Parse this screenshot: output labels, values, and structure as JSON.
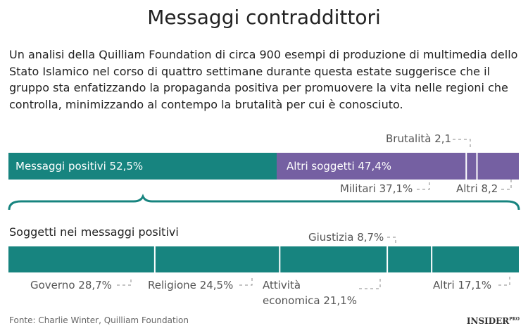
{
  "title": "Messaggi contraddittori",
  "subtitle": "Un analisi della Quilliam Foundation di circa 900 esempi di produzione di multimedia dello Stato Islamico nel corso di quattro settimane durante questa estate suggerisce che il gruppo sta enfatizzando la propaganda positiva per promuovere la vita nelle regioni che controlla, minimizzando al contempo la brutalità per cui è conosciuto.",
  "source": "Fonte: Charlie Winter, Quilliam Foundation",
  "brand": "INSIDER",
  "brand_sup": "PRO",
  "chart_data": [
    {
      "type": "stacked-bar",
      "series": [
        {
          "name": "Messaggi positivi",
          "color": "#17847f",
          "values": [
            52.5
          ],
          "value_labels": [
            "52,5%"
          ]
        },
        {
          "name": "Altri soggetti",
          "color": "#7560a2",
          "values": [
            47.4
          ],
          "value_labels": [
            "47,4%"
          ],
          "parts": [
            {
              "name": "Militari",
              "values": [
                37.1
              ],
              "value_labels": [
                "37,1%"
              ]
            },
            {
              "name": "Brutalità",
              "values": [
                2.1
              ],
              "value_labels": [
                "2,1"
              ]
            },
            {
              "name": "Altri",
              "values": [
                8.2
              ],
              "value_labels": [
                "8,2"
              ]
            }
          ]
        }
      ]
    },
    {
      "type": "stacked-bar",
      "title": "Soggetti nei messaggi positivi",
      "color": "#17847f",
      "categories": [
        "Governo",
        "Religione",
        "Attività economica",
        "Giustizia",
        "Altri"
      ],
      "values": [
        28.7,
        24.5,
        21.1,
        8.7,
        17.1
      ],
      "value_labels": [
        "28,7%",
        "24,5%",
        "21,1%",
        "8,7%",
        "17,1%"
      ]
    }
  ]
}
